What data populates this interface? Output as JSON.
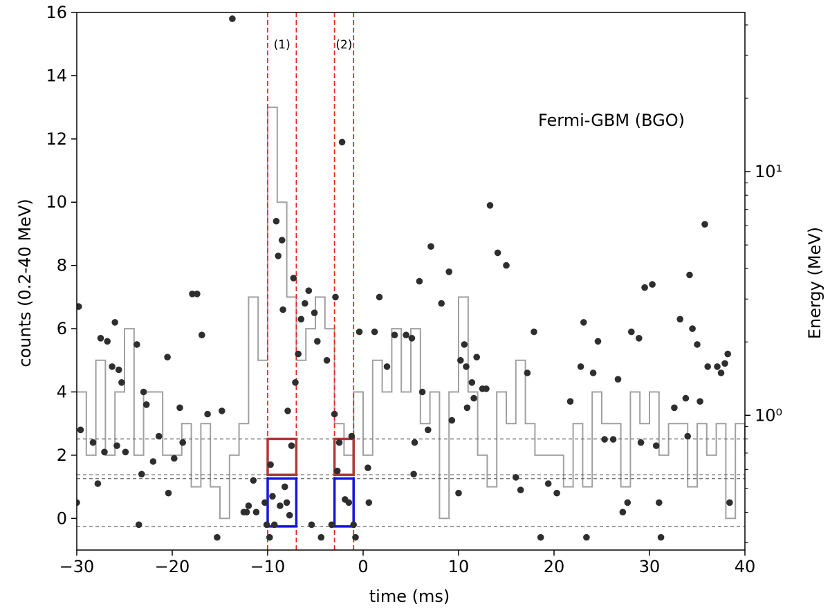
{
  "chart_data": {
    "type": "scatter",
    "xlabel": "time (ms)",
    "ylabel": "counts (0.2-40 MeV)",
    "y2label": "Energy (MeV)",
    "inset_label": "Fermi-GBM (BGO)",
    "xlim": [
      -30,
      40
    ],
    "ylim": [
      -1,
      16
    ],
    "y2_scale": "log",
    "y2lim": [
      0.28,
      45
    ],
    "xticks": [
      -30,
      -20,
      -10,
      0,
      10,
      20,
      30,
      40
    ],
    "xtick_labels": [
      "−30",
      "−20",
      "−10",
      "0",
      "10",
      "20",
      "30",
      "40"
    ],
    "yticks": [
      0,
      2,
      4,
      6,
      8,
      10,
      12,
      14,
      16
    ],
    "ytick_labels": [
      "0",
      "2",
      "4",
      "6",
      "8",
      "10",
      "12",
      "14",
      "16"
    ],
    "y2ticks": [
      1,
      10
    ],
    "y2tick_labels": [
      "10⁰",
      "10¹"
    ],
    "grid": false,
    "series": [
      {
        "kind": "step",
        "color": "#a0a0a0",
        "x": [
          -30,
          -29,
          -28,
          -27,
          -26,
          -25,
          -24,
          -23,
          -22,
          -21,
          -20,
          -19,
          -18,
          -17,
          -16,
          -15,
          -14,
          -13,
          -12,
          -11,
          -10,
          -9,
          -8,
          -7,
          -6,
          -5,
          -4,
          -3,
          -2,
          -1,
          0,
          1,
          2,
          3,
          4,
          5,
          6,
          7,
          8,
          9,
          10,
          11,
          12,
          13,
          14,
          15,
          16,
          17,
          18,
          19,
          20,
          21,
          22,
          23,
          24,
          25,
          26,
          27,
          28,
          29,
          30,
          31,
          32,
          33,
          34,
          35,
          36,
          37,
          38,
          39,
          40
        ],
        "values": [
          4,
          2,
          5,
          2,
          4,
          6,
          2,
          4,
          4,
          2,
          2,
          3,
          1,
          3,
          1,
          0,
          2,
          3,
          7,
          5,
          13,
          10,
          7,
          5,
          6,
          7,
          6,
          3,
          2,
          4,
          2,
          5,
          4,
          6,
          4,
          6,
          3,
          4,
          0,
          4,
          7,
          4,
          2,
          1,
          4,
          3,
          5,
          3,
          2,
          2,
          2,
          1,
          3,
          1,
          4,
          3,
          3,
          1,
          4,
          3,
          4,
          2,
          3,
          3,
          1,
          3,
          2,
          3,
          0,
          3,
          2
        ]
      },
      {
        "kind": "points",
        "color": "#2e2e2e",
        "x": [
          -30,
          -29.8,
          -29.6,
          -28.3,
          -27.8,
          -27.5,
          -27.1,
          -26.8,
          -26.3,
          -26,
          -25.8,
          -25.6,
          -25.3,
          -24.9,
          -23.7,
          -23.5,
          -23.2,
          -23,
          -22.7,
          -22,
          -21.4,
          -20.5,
          -20.4,
          -19.8,
          -19.2,
          -18.9,
          -17.9,
          -17.4,
          -16.9,
          -16.3,
          -15.3,
          -14.8,
          -13.7,
          -12.5,
          -12.2,
          -12,
          -11.5,
          -11.2,
          -10.3,
          -10.1,
          -9.8,
          -9.7,
          -9.5,
          -9.3,
          -9.1,
          -8.9,
          -8.7,
          -8.5,
          -8.4,
          -8.2,
          -8,
          -7.9,
          -7.7,
          -7.5,
          -7.3,
          -7.1,
          -6.8,
          -6.5,
          -6.1,
          -5.7,
          -5.4,
          -5.1,
          -4.8,
          -4.4,
          -3.8,
          -3.3,
          -3,
          -2.9,
          -2.7,
          -2.5,
          -2.2,
          -1.9,
          -1.5,
          -1.2,
          -1,
          -0.8,
          -0.4,
          0.5,
          0.6,
          1.2,
          1.7,
          2.5,
          3.3,
          4.5,
          5.1,
          5.3,
          5.4,
          5.9,
          6.2,
          6.8,
          7.1,
          8.2,
          9,
          9.3,
          10,
          10.2,
          10.6,
          10.8,
          10.9,
          11.4,
          11.6,
          11.9,
          12.5,
          12.9,
          13.3,
          14.1,
          15,
          16,
          16.5,
          17.2,
          17.9,
          18.6,
          19.4,
          20.3,
          21.7,
          22.8,
          23.1,
          23.4,
          24.1,
          24.6,
          25.3,
          26.2,
          26.7,
          27.2,
          27.7,
          28.1,
          28.9,
          29.1,
          29.5,
          30.3,
          30.7,
          31,
          31.2,
          32.6,
          33.2,
          33.8,
          34,
          34.2,
          34.5,
          35,
          35.3,
          35.8,
          36.1,
          37.1,
          37.5,
          37.9,
          38.2,
          38.4
        ],
        "y": [
          0.5,
          6.7,
          2.8,
          2.4,
          1.1,
          5.7,
          2.1,
          5.6,
          4.8,
          6.2,
          2.3,
          4.7,
          4.3,
          2.1,
          5.5,
          -0.2,
          1.4,
          4,
          3.6,
          1.8,
          2.6,
          5.1,
          0.8,
          1.9,
          3.5,
          2.4,
          7.1,
          7.1,
          5.8,
          3.3,
          -0.6,
          3.4,
          15.8,
          0.2,
          0.2,
          0.4,
          1.2,
          0.2,
          0.5,
          -0.2,
          -0.6,
          1.7,
          0.7,
          -0.2,
          9.4,
          8.3,
          0.4,
          8.8,
          6.6,
          1,
          0.5,
          3.4,
          0.1,
          2.3,
          7.6,
          4.3,
          5.2,
          6.3,
          6.8,
          7.2,
          -0.2,
          6.5,
          5.6,
          -0.6,
          5,
          -0.2,
          3.3,
          7,
          1.5,
          2.4,
          11.9,
          0.6,
          0.5,
          2.6,
          -0.2,
          -0.6,
          5.9,
          1.6,
          0.5,
          5.9,
          7,
          4.8,
          5.8,
          5.8,
          5.7,
          1.4,
          2.4,
          7.5,
          4,
          2.8,
          8.6,
          6.8,
          7.8,
          3.1,
          0.8,
          5,
          5.5,
          4.8,
          3.5,
          4.3,
          3.8,
          5.1,
          4.1,
          4.1,
          9.9,
          8.4,
          8,
          1.3,
          0.9,
          4.6,
          5.9,
          -0.6,
          1.1,
          0.8,
          3.7,
          4.8,
          6.2,
          -0.6,
          4.6,
          5.6,
          2.5,
          2.5,
          4.4,
          0.2,
          0.5,
          5.9,
          5.7,
          2.4,
          7.3,
          7.4,
          2.3,
          0.5,
          -0.6,
          3.5,
          6.3,
          3.8,
          2.6,
          7.7,
          6,
          5.5,
          3.7,
          9.3,
          4.8,
          4.8,
          4.6,
          4.9,
          5.2,
          0.5
        ]
      }
    ],
    "intervals": [
      {
        "label": "(1)",
        "x_start": -10,
        "x_end": -7,
        "color": "#e8281e"
      },
      {
        "label": "(2)",
        "x_start": -3,
        "x_end": -1,
        "color": "#e8281e"
      }
    ],
    "energy_lines_MeV": [
      0.35,
      0.55,
      0.57,
      0.8
    ],
    "energy_boxes": [
      {
        "x_start": -10,
        "x_end": -7,
        "e_low": 0.57,
        "e_high": 0.8,
        "color": "#b03a36"
      },
      {
        "x_start": -10,
        "x_end": -7,
        "e_low": 0.35,
        "e_high": 0.55,
        "color": "#1515e0"
      },
      {
        "x_start": -3,
        "x_end": -1,
        "e_low": 0.57,
        "e_high": 0.8,
        "color": "#b03a36"
      },
      {
        "x_start": -3,
        "x_end": -1,
        "e_low": 0.35,
        "e_high": 0.55,
        "color": "#1515e0"
      }
    ]
  }
}
